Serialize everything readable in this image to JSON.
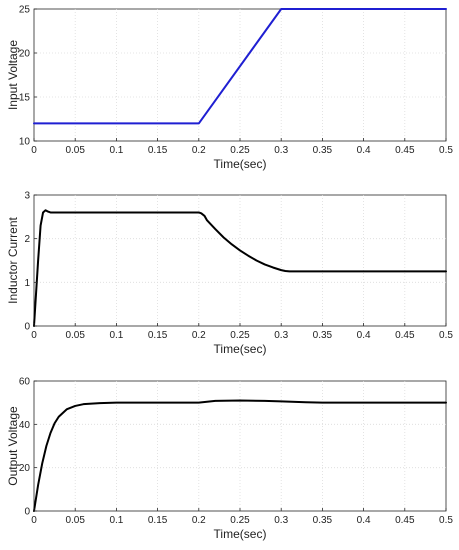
{
  "chart_data": [
    {
      "type": "line",
      "ylabel": "Input Voltage",
      "xlabel": "Time(sec)",
      "xlim": [
        0,
        0.5
      ],
      "ylim": [
        10,
        25
      ],
      "xticks": [
        0,
        0.05,
        0.1,
        0.15,
        0.2,
        0.25,
        0.3,
        0.35,
        0.4,
        0.45,
        0.5
      ],
      "xtick_labels": [
        "0",
        "0.05",
        "0.1",
        "0.15",
        "0.2",
        "0.25",
        "0.3",
        "0.35",
        "0.4",
        "0.45",
        "0.5"
      ],
      "yticks": [
        10,
        15,
        20,
        25
      ],
      "ytick_labels": [
        "10",
        "15",
        "20",
        "25"
      ],
      "grid": true,
      "series": [
        {
          "color": "#1f1fd2",
          "x": [
            0,
            0.2,
            0.3,
            0.5
          ],
          "y": [
            12,
            12,
            25,
            25
          ]
        }
      ]
    },
    {
      "type": "line",
      "ylabel": "Inductor Current",
      "xlabel": "Time(sec)",
      "xlim": [
        0,
        0.5
      ],
      "ylim": [
        0,
        3
      ],
      "xticks": [
        0,
        0.05,
        0.1,
        0.15,
        0.2,
        0.25,
        0.3,
        0.35,
        0.4,
        0.45,
        0.5
      ],
      "xtick_labels": [
        "0",
        "0.05",
        "0.1",
        "0.15",
        "0.2",
        "0.25",
        "0.3",
        "0.35",
        "0.4",
        "0.45",
        "0.5"
      ],
      "yticks": [
        0,
        1,
        2,
        3
      ],
      "ytick_labels": [
        "0",
        "1",
        "2",
        "3"
      ],
      "grid": true,
      "series": [
        {
          "color": "#000000",
          "x": [
            0,
            0.002,
            0.005,
            0.008,
            0.011,
            0.014,
            0.017,
            0.02,
            0.05,
            0.1,
            0.15,
            0.2,
            0.203,
            0.207,
            0.21,
            0.22,
            0.23,
            0.24,
            0.25,
            0.26,
            0.27,
            0.28,
            0.29,
            0.3,
            0.305,
            0.31,
            0.35,
            0.4,
            0.45,
            0.5
          ],
          "y": [
            0,
            0.6,
            1.5,
            2.3,
            2.6,
            2.65,
            2.62,
            2.6,
            2.6,
            2.6,
            2.6,
            2.6,
            2.58,
            2.52,
            2.42,
            2.22,
            2.03,
            1.87,
            1.73,
            1.61,
            1.5,
            1.41,
            1.34,
            1.28,
            1.26,
            1.25,
            1.25,
            1.25,
            1.25,
            1.25
          ]
        }
      ]
    },
    {
      "type": "line",
      "ylabel": "Output Voltage",
      "xlabel": "Time(sec)",
      "xlim": [
        0,
        0.5
      ],
      "ylim": [
        0,
        60
      ],
      "xticks": [
        0,
        0.05,
        0.1,
        0.15,
        0.2,
        0.25,
        0.3,
        0.35,
        0.4,
        0.45,
        0.5
      ],
      "xtick_labels": [
        "0",
        "0.05",
        "0.1",
        "0.15",
        "0.2",
        "0.25",
        "0.3",
        "0.35",
        "0.4",
        "0.45",
        "0.5"
      ],
      "yticks": [
        0,
        20,
        40,
        60
      ],
      "ytick_labels": [
        "0",
        "20",
        "40",
        "60"
      ],
      "grid": true,
      "series": [
        {
          "color": "#000000",
          "x": [
            0,
            0.005,
            0.01,
            0.015,
            0.02,
            0.025,
            0.03,
            0.04,
            0.05,
            0.06,
            0.08,
            0.1,
            0.15,
            0.2,
            0.22,
            0.25,
            0.28,
            0.3,
            0.33,
            0.35,
            0.4,
            0.45,
            0.5
          ],
          "y": [
            0,
            12,
            22,
            30,
            36,
            40.5,
            43.5,
            47,
            48.5,
            49.3,
            49.8,
            50,
            50,
            50,
            50.8,
            51,
            50.8,
            50.6,
            50.2,
            50,
            50,
            50,
            50
          ]
        }
      ]
    }
  ]
}
